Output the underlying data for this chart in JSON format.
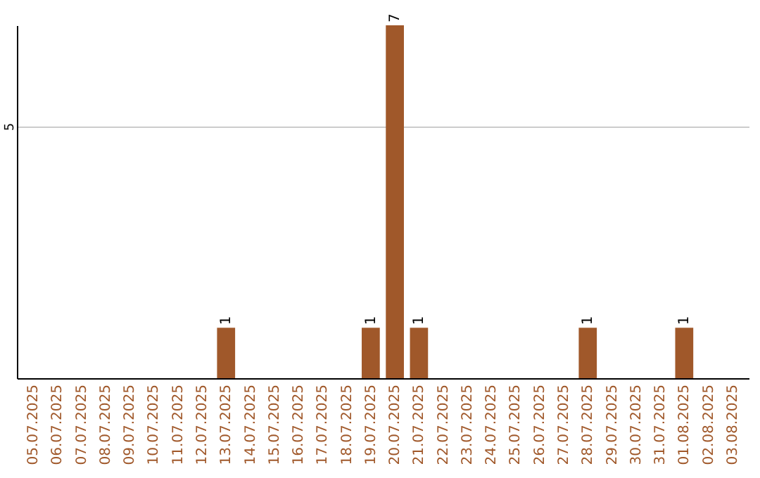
{
  "chart_data": {
    "type": "bar",
    "categories": [
      "05.07.2025",
      "06.07.2025",
      "07.07.2025",
      "08.07.2025",
      "09.07.2025",
      "10.07.2025",
      "11.07.2025",
      "12.07.2025",
      "13.07.2025",
      "14.07.2025",
      "15.07.2025",
      "16.07.2025",
      "17.07.2025",
      "18.07.2025",
      "19.07.2025",
      "20.07.2025",
      "21.07.2025",
      "22.07.2025",
      "23.07.2025",
      "24.07.2025",
      "25.07.2025",
      "26.07.2025",
      "27.07.2025",
      "28.07.2025",
      "29.07.2025",
      "30.07.2025",
      "31.07.2025",
      "01.08.2025",
      "02.08.2025",
      "03.08.2025"
    ],
    "values": [
      0,
      0,
      0,
      0,
      0,
      0,
      0,
      0,
      1,
      0,
      0,
      0,
      0,
      0,
      1,
      7,
      1,
      0,
      0,
      0,
      0,
      0,
      0,
      1,
      0,
      0,
      0,
      1,
      0,
      0
    ],
    "value_labels": [
      null,
      null,
      null,
      null,
      null,
      null,
      null,
      null,
      "1",
      null,
      null,
      null,
      null,
      null,
      "1",
      "7",
      "1",
      null,
      null,
      null,
      null,
      null,
      null,
      "1",
      null,
      null,
      null,
      "1",
      null,
      null
    ],
    "color": "#a0582a",
    "ylim": [
      0,
      7
    ],
    "yticks": [
      5
    ],
    "grid": "y"
  }
}
